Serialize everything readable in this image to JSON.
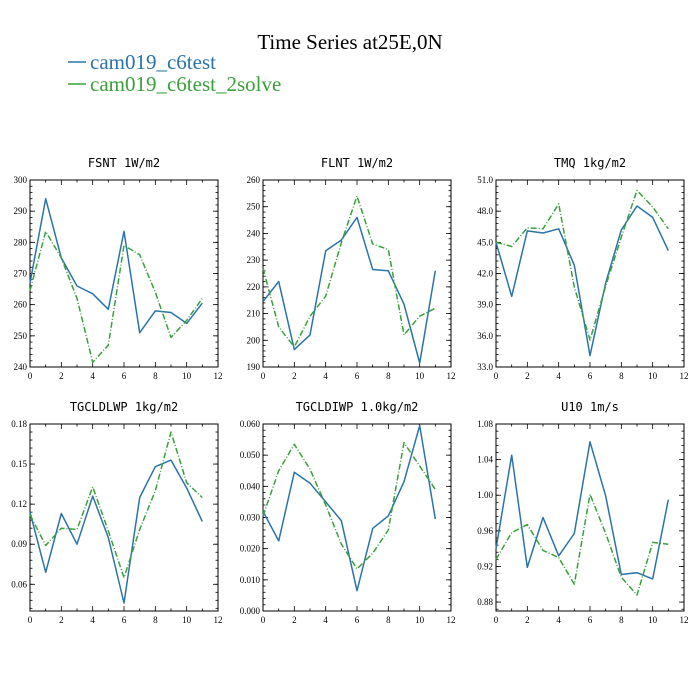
{
  "figure": {
    "title": "Time Series at25E,0N"
  },
  "legend": [
    {
      "name": "cam019_c6test",
      "color": "#2a74a9",
      "dash": "solid"
    },
    {
      "name": "cam019_c6test_2solve",
      "color": "#3aa03a",
      "dash": "dashdot"
    }
  ],
  "chart_data": [
    {
      "type": "line",
      "title": "FSNT   1W/m2",
      "xlim": [
        0,
        12
      ],
      "ylim": [
        240,
        300
      ],
      "xticks": [
        0,
        2,
        4,
        6,
        8,
        10,
        12
      ],
      "yticks": [
        240,
        250,
        260,
        270,
        280,
        290,
        300
      ],
      "ytick_labels": [
        "240",
        "250",
        "260",
        "270",
        "280",
        "290",
        "300"
      ],
      "x": [
        0,
        1,
        2,
        3,
        4,
        5,
        6,
        7,
        8,
        9,
        10,
        11
      ],
      "series": [
        {
          "name": "cam019_c6test",
          "values": [
            267,
            294,
            275,
            266,
            263.5,
            258.5,
            283.5,
            251,
            258,
            257.5,
            254,
            260.5
          ]
        },
        {
          "name": "cam019_c6test_2solve",
          "values": [
            264.5,
            283.5,
            275,
            262,
            241.5,
            247,
            279,
            276,
            264,
            249.5,
            255,
            262
          ]
        }
      ]
    },
    {
      "type": "line",
      "title": "FLNT   1W/m2",
      "xlim": [
        0,
        12
      ],
      "ylim": [
        190,
        260
      ],
      "xticks": [
        0,
        2,
        4,
        6,
        8,
        10,
        12
      ],
      "yticks": [
        190,
        200,
        210,
        220,
        230,
        240,
        250,
        260
      ],
      "ytick_labels": [
        "190",
        "200",
        "210",
        "220",
        "230",
        "240",
        "250",
        "260"
      ],
      "x": [
        0,
        1,
        2,
        3,
        4,
        5,
        6,
        7,
        8,
        9,
        10,
        11
      ],
      "series": [
        {
          "name": "cam019_c6test",
          "values": [
            214.5,
            222,
            196.5,
            202,
            233.5,
            237.5,
            246,
            226.5,
            226,
            213.5,
            191.5,
            226
          ]
        },
        {
          "name": "cam019_c6test_2solve",
          "values": [
            227,
            205,
            197.5,
            209,
            216.5,
            236.5,
            254,
            236,
            234,
            202,
            209,
            212
          ]
        }
      ]
    },
    {
      "type": "line",
      "title": "TMQ   1kg/m2",
      "xlim": [
        0,
        12
      ],
      "ylim": [
        33,
        51
      ],
      "xticks": [
        0,
        2,
        4,
        6,
        8,
        10,
        12
      ],
      "yticks": [
        33,
        36,
        39,
        42,
        45,
        48,
        51
      ],
      "ytick_labels": [
        "33.0",
        "36.0",
        "39.0",
        "42.0",
        "45.0",
        "48.0",
        "51.0"
      ],
      "x": [
        0,
        1,
        2,
        3,
        4,
        5,
        6,
        7,
        8,
        9,
        10,
        11
      ],
      "series": [
        {
          "name": "cam019_c6test",
          "values": [
            45,
            39.8,
            46.1,
            45.9,
            46.3,
            42.8,
            34.1,
            41.1,
            46.2,
            48.5,
            47.4,
            44.2
          ]
        },
        {
          "name": "cam019_c6test_2solve",
          "values": [
            45,
            44.6,
            46.4,
            46.3,
            48.7,
            40.7,
            35.6,
            40.8,
            45.5,
            50,
            48.4,
            46.3
          ]
        }
      ]
    },
    {
      "type": "line",
      "title": "TGCLDLWP   1kg/m2",
      "xlim": [
        0,
        12
      ],
      "ylim": [
        0.04,
        0.18
      ],
      "xticks": [
        0,
        2,
        4,
        6,
        8,
        10,
        12
      ],
      "yticks": [
        0.06,
        0.09,
        0.12,
        0.15,
        0.18
      ],
      "ytick_labels": [
        "0.06",
        "0.09",
        "0.12",
        "0.15",
        "0.18"
      ],
      "x": [
        0,
        1,
        2,
        3,
        4,
        5,
        6,
        7,
        8,
        9,
        10,
        11
      ],
      "series": [
        {
          "name": "cam019_c6test",
          "values": [
            0.114,
            0.069,
            0.113,
            0.09,
            0.126,
            0.095,
            0.046,
            0.125,
            0.148,
            0.153,
            0.132,
            0.107
          ]
        },
        {
          "name": "cam019_c6test_2solve",
          "values": [
            0.112,
            0.089,
            0.102,
            0.101,
            0.133,
            0.1,
            0.065,
            0.101,
            0.13,
            0.174,
            0.136,
            0.125
          ]
        }
      ]
    },
    {
      "type": "line",
      "title": "TGCLDIWP   1.0kg/m2",
      "xlim": [
        0,
        12
      ],
      "ylim": [
        0,
        0.06
      ],
      "xticks": [
        0,
        2,
        4,
        6,
        8,
        10,
        12
      ],
      "yticks": [
        0,
        0.01,
        0.02,
        0.03,
        0.04,
        0.05,
        0.06
      ],
      "ytick_labels": [
        "0.000",
        "0.010",
        "0.020",
        "0.030",
        "0.040",
        "0.050",
        "0.060"
      ],
      "x": [
        0,
        1,
        2,
        3,
        4,
        5,
        6,
        7,
        8,
        9,
        10,
        11
      ],
      "series": [
        {
          "name": "cam019_c6test",
          "values": [
            0.032,
            0.0225,
            0.0445,
            0.041,
            0.035,
            0.029,
            0.0065,
            0.0265,
            0.0305,
            0.0415,
            0.0595,
            0.0295
          ]
        },
        {
          "name": "cam019_c6test_2solve",
          "values": [
            0.0305,
            0.045,
            0.0535,
            0.0455,
            0.034,
            0.0215,
            0.0135,
            0.0185,
            0.026,
            0.054,
            0.0465,
            0.039
          ]
        }
      ]
    },
    {
      "type": "line",
      "title": "U10   1m/s",
      "xlim": [
        0,
        12
      ],
      "ylim": [
        0.87,
        1.08
      ],
      "xticks": [
        0,
        2,
        4,
        6,
        8,
        10,
        12
      ],
      "yticks": [
        0.88,
        0.92,
        0.96,
        1.0,
        1.04,
        1.08
      ],
      "ytick_labels": [
        "0.88",
        "0.92",
        "0.96",
        "1.00",
        "1.04",
        "1.08"
      ],
      "x": [
        0,
        1,
        2,
        3,
        4,
        5,
        6,
        7,
        8,
        9,
        10,
        11
      ],
      "series": [
        {
          "name": "cam019_c6test",
          "values": [
            0.94,
            1.045,
            0.919,
            0.975,
            0.932,
            0.957,
            1.06,
            0.999,
            0.911,
            0.913,
            0.906,
            0.995
          ]
        },
        {
          "name": "cam019_c6test_2solve",
          "values": [
            0.928,
            0.958,
            0.967,
            0.938,
            0.93,
            0.9,
            1.001,
            0.957,
            0.908,
            0.888,
            0.947,
            0.945
          ]
        }
      ]
    }
  ]
}
